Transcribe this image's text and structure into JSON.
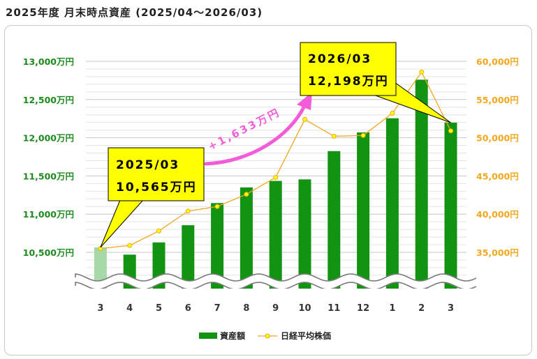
{
  "title": "2025年度 月末時点資産 (2025/04～2026/03)",
  "colors": {
    "bar": "#129412",
    "bar_first": "#a6d7a6",
    "line": "#f2a81e",
    "marker_fill": "#ffff00",
    "left_axis_text": "#1e8a1e",
    "right_axis_text": "#f2a81e",
    "callout_fill": "#ffff00",
    "arrow": "#f25cd8"
  },
  "chart_data": {
    "type": "bar",
    "categories": [
      "3",
      "4",
      "5",
      "6",
      "7",
      "8",
      "9",
      "10",
      "11",
      "12",
      "1",
      "2",
      "3"
    ],
    "series": [
      {
        "name": "資産額",
        "type": "bar",
        "axis": "left",
        "values": [
          10565,
          10470,
          10630,
          10855,
          11145,
          11350,
          11435,
          11455,
          11825,
          12070,
          12255,
          12760,
          12198
        ]
      },
      {
        "name": "日経平均株価",
        "type": "line",
        "axis": "right",
        "values": [
          35500,
          35900,
          37800,
          40400,
          41000,
          42600,
          44800,
          52400,
          50200,
          50300,
          53200,
          58600,
          50900
        ]
      }
    ],
    "left_axis": {
      "ticks": [
        10500,
        11000,
        11500,
        12000,
        12500,
        13000
      ],
      "tick_labels": [
        "10,500万円",
        "11,000万円",
        "11,500万円",
        "12,000万円",
        "12,500万円",
        "13,000万円"
      ],
      "range": [
        10500,
        13000
      ],
      "broken_below": true
    },
    "right_axis": {
      "ticks": [
        35000,
        40000,
        45000,
        50000,
        55000,
        60000
      ],
      "tick_labels": [
        "35,000円",
        "40,000円",
        "45,000円",
        "50,000円",
        "55,000円",
        "60,000円"
      ],
      "range": [
        35000,
        60000
      ]
    },
    "grid": true,
    "legend": "bottom",
    "annotations": {
      "start": {
        "line1": "2025/03",
        "line2": "10,565万円"
      },
      "end": {
        "line1": "2026/03",
        "line2": "12,198万円"
      },
      "diff": "+1,633万円"
    }
  }
}
